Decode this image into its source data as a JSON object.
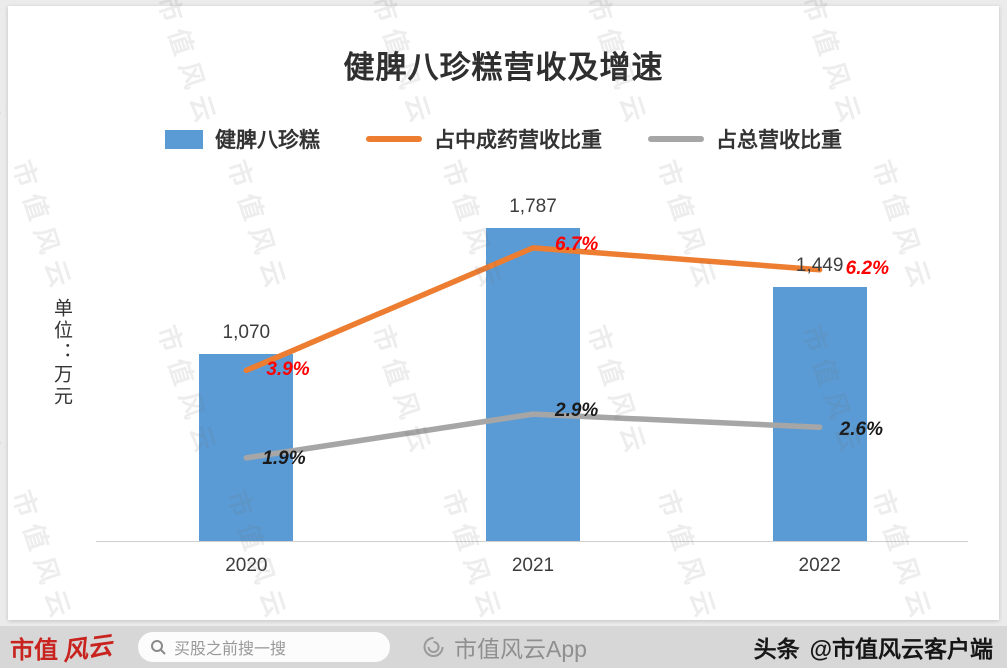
{
  "title": "健脾八珍糕营收及增速",
  "unit_label": "单位：万元",
  "colors": {
    "bar": "#5B9BD5",
    "orange_line": "#ED7D31",
    "gray_line": "#A6A6A6",
    "orange_label": "#FF0000",
    "gray_label": "#1a1a1a"
  },
  "legend": [
    {
      "label": "健脾八珍糕"
    },
    {
      "label": "占中成药营收比重"
    },
    {
      "label": "占总营收比重"
    }
  ],
  "chart_data": {
    "type": "bar+line",
    "title": "健脾八珍糕营收及增速",
    "ylabel": "单位：万元",
    "categories": [
      "2020",
      "2021",
      "2022"
    ],
    "bar_axis_max": 2000,
    "pct_axis_max": 8,
    "series": [
      {
        "name": "健脾八珍糕",
        "type": "bar",
        "values": [
          1070,
          1787,
          1449
        ],
        "labels": [
          "1,070",
          "1,787",
          "1,449"
        ],
        "color": "#5B9BD5"
      },
      {
        "name": "占中成药营收比重",
        "type": "line",
        "values": [
          3.9,
          6.7,
          6.2
        ],
        "labels": [
          "3.9%",
          "6.7%",
          "6.2%"
        ],
        "color": "#ED7D31",
        "label_color": "#FF0000"
      },
      {
        "name": "占总营收比重",
        "type": "line",
        "values": [
          1.9,
          2.9,
          2.6
        ],
        "labels": [
          "1.9%",
          "2.9%",
          "2.6%"
        ],
        "color": "#A6A6A6",
        "label_color": "#1a1a1a"
      }
    ]
  },
  "watermark": {
    "text": "市值风云"
  },
  "footer": {
    "brand_left": {
      "text_1": "市值",
      "text_2": "风云"
    },
    "search": {
      "placeholder": "买股之前搜一搜"
    },
    "center": {
      "app_name": "市值风云App"
    },
    "right": {
      "platform": "头条",
      "handle": "@市值风云客户端"
    }
  }
}
